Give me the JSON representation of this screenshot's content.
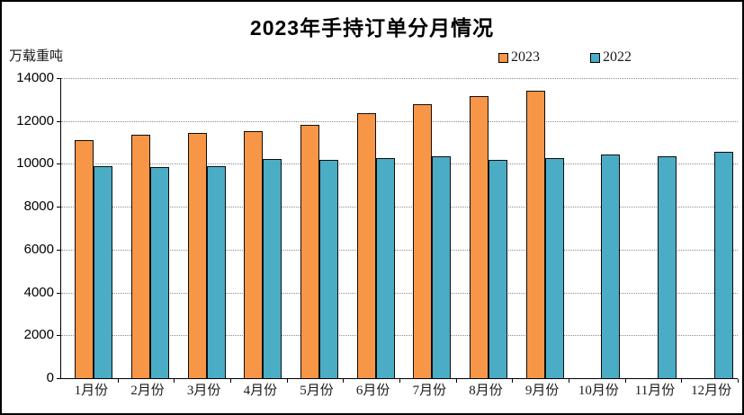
{
  "title": "2023年手持订单分月情况",
  "unit_label": "万载重吨",
  "colors": {
    "series_2023": "#F79646",
    "series_2022": "#4BACC6",
    "bar_border": "#0d0d0d",
    "gridline": "#8c8c8c",
    "axis": "#000000"
  },
  "chart_data": {
    "type": "bar",
    "title": "2023年手持订单分月情况",
    "ylabel": "万载重吨",
    "xlabel": "",
    "categories": [
      "1月份",
      "2月份",
      "3月份",
      "4月份",
      "5月份",
      "6月份",
      "7月份",
      "8月份",
      "9月份",
      "10月份",
      "11月份",
      "12月份"
    ],
    "series": [
      {
        "name": "2023",
        "color": "#F79646",
        "values": [
          11100,
          11380,
          11450,
          11520,
          11830,
          12380,
          12790,
          13180,
          13430,
          null,
          null,
          null
        ]
      },
      {
        "name": "2022",
        "color": "#4BACC6",
        "values": [
          9900,
          9850,
          9890,
          10230,
          10200,
          10260,
          10340,
          10200,
          10260,
          10440,
          10340,
          10550
        ]
      }
    ],
    "ylim": [
      0,
      14000
    ],
    "ytick_interval": 2000,
    "ytick_labels": [
      "0",
      "2000",
      "4000",
      "6000",
      "8000",
      "10000",
      "12000",
      "14000"
    ],
    "grid": true,
    "gridline_style": "dotted",
    "legend_position": "top-right"
  }
}
